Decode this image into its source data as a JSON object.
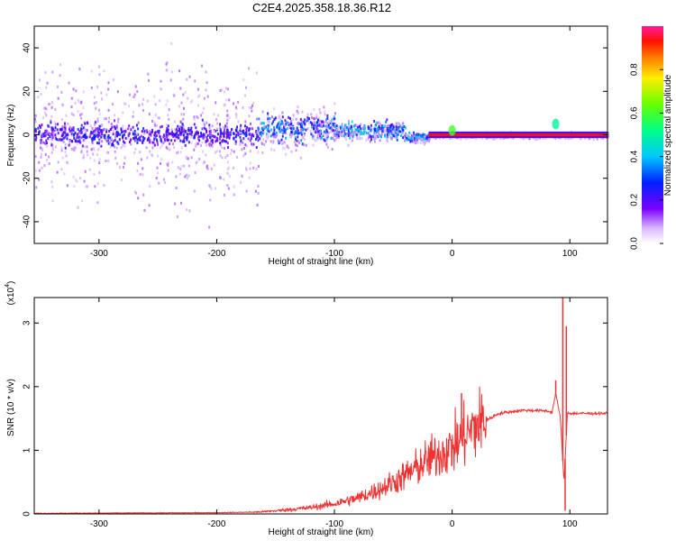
{
  "title": "C2E4.2025.358.18.36.R12",
  "chart_data": [
    {
      "type": "heatmap",
      "name": "spectrogram",
      "xlabel": "Height of straight line (km)",
      "ylabel": "Frequency (Hz)",
      "xlim": [
        -355,
        132
      ],
      "ylim": [
        -50,
        50
      ],
      "xticks": [
        -300,
        -200,
        -100,
        0,
        100
      ],
      "xtick_labels": [
        "-300",
        "-200",
        "-100",
        "0",
        "100"
      ],
      "yticks": [
        -40,
        -20,
        0,
        20,
        40
      ],
      "ytick_labels": [
        "-40",
        "-20",
        "0",
        "20",
        "40"
      ],
      "colorbar": {
        "label": "Normalized spectral amplitude",
        "range": [
          0,
          1
        ],
        "ticks": [
          0.0,
          0.2,
          0.4,
          0.6,
          0.8
        ],
        "tick_labels": [
          "0.0",
          "0.2",
          "0.4",
          "0.6",
          "0.8"
        ]
      },
      "bands": [
        {
          "x_from": -355,
          "x_to": -165,
          "center_hz": 0,
          "half_width_hz": 8,
          "amplitude": 0.3,
          "scatter_hz": 50
        },
        {
          "x_from": -165,
          "x_to": -100,
          "center_hz": 3,
          "half_width_hz": 10,
          "amplitude": 0.4,
          "scatter_hz": 18
        },
        {
          "x_from": -100,
          "x_to": -40,
          "center_hz": 2,
          "half_width_hz": 6,
          "amplitude": 0.45,
          "scatter_hz": 8
        },
        {
          "x_from": -40,
          "x_to": -20,
          "center_hz": -1,
          "half_width_hz": 3,
          "amplitude": 0.5,
          "scatter_hz": 4
        },
        {
          "x_from": -20,
          "x_to": 132,
          "center_hz": 0,
          "half_width_hz": 1.5,
          "amplitude": 1.0,
          "scatter_hz": 2
        }
      ],
      "features": [
        {
          "x": 0,
          "center_hz": 2,
          "amplitude": 0.6
        },
        {
          "x": 88,
          "center_hz": 5,
          "amplitude": 0.5
        }
      ]
    },
    {
      "type": "line",
      "name": "snr",
      "xlabel": "Height of straight line (km)",
      "ylabel": "SNR (10 * v/v)",
      "y_multiplier_label": "(x10",
      "y_multiplier_exponent": "4",
      "xlim": [
        -355,
        132
      ],
      "ylim": [
        0,
        3.4
      ],
      "xticks": [
        -300,
        -200,
        -100,
        0,
        100
      ],
      "xtick_labels": [
        "-300",
        "-200",
        "-100",
        "0",
        "100"
      ],
      "yticks": [
        0,
        1,
        2,
        3
      ],
      "ytick_labels": [
        "0",
        "1",
        "2",
        "3"
      ],
      "color": "#ee3333",
      "trend_x": [
        -355,
        -200,
        -165,
        -150,
        -120,
        -100,
        -80,
        -60,
        -40,
        -20,
        0,
        20,
        40,
        60,
        80,
        85,
        88,
        92,
        95,
        98,
        100,
        110,
        132
      ],
      "trend_y": [
        0.01,
        0.02,
        0.03,
        0.05,
        0.1,
        0.16,
        0.25,
        0.4,
        0.6,
        0.85,
        1.05,
        1.38,
        1.58,
        1.63,
        1.62,
        1.6,
        1.9,
        1.5,
        0.5,
        1.6,
        1.58,
        1.58,
        1.58
      ],
      "spikes": [
        {
          "x": 8,
          "y": 1.9
        },
        {
          "x": 88,
          "y": 2.1
        },
        {
          "x": 94,
          "y": 3.4
        },
        {
          "x": 96,
          "y": 0.05
        },
        {
          "x": 97,
          "y": 2.95
        }
      ]
    }
  ]
}
